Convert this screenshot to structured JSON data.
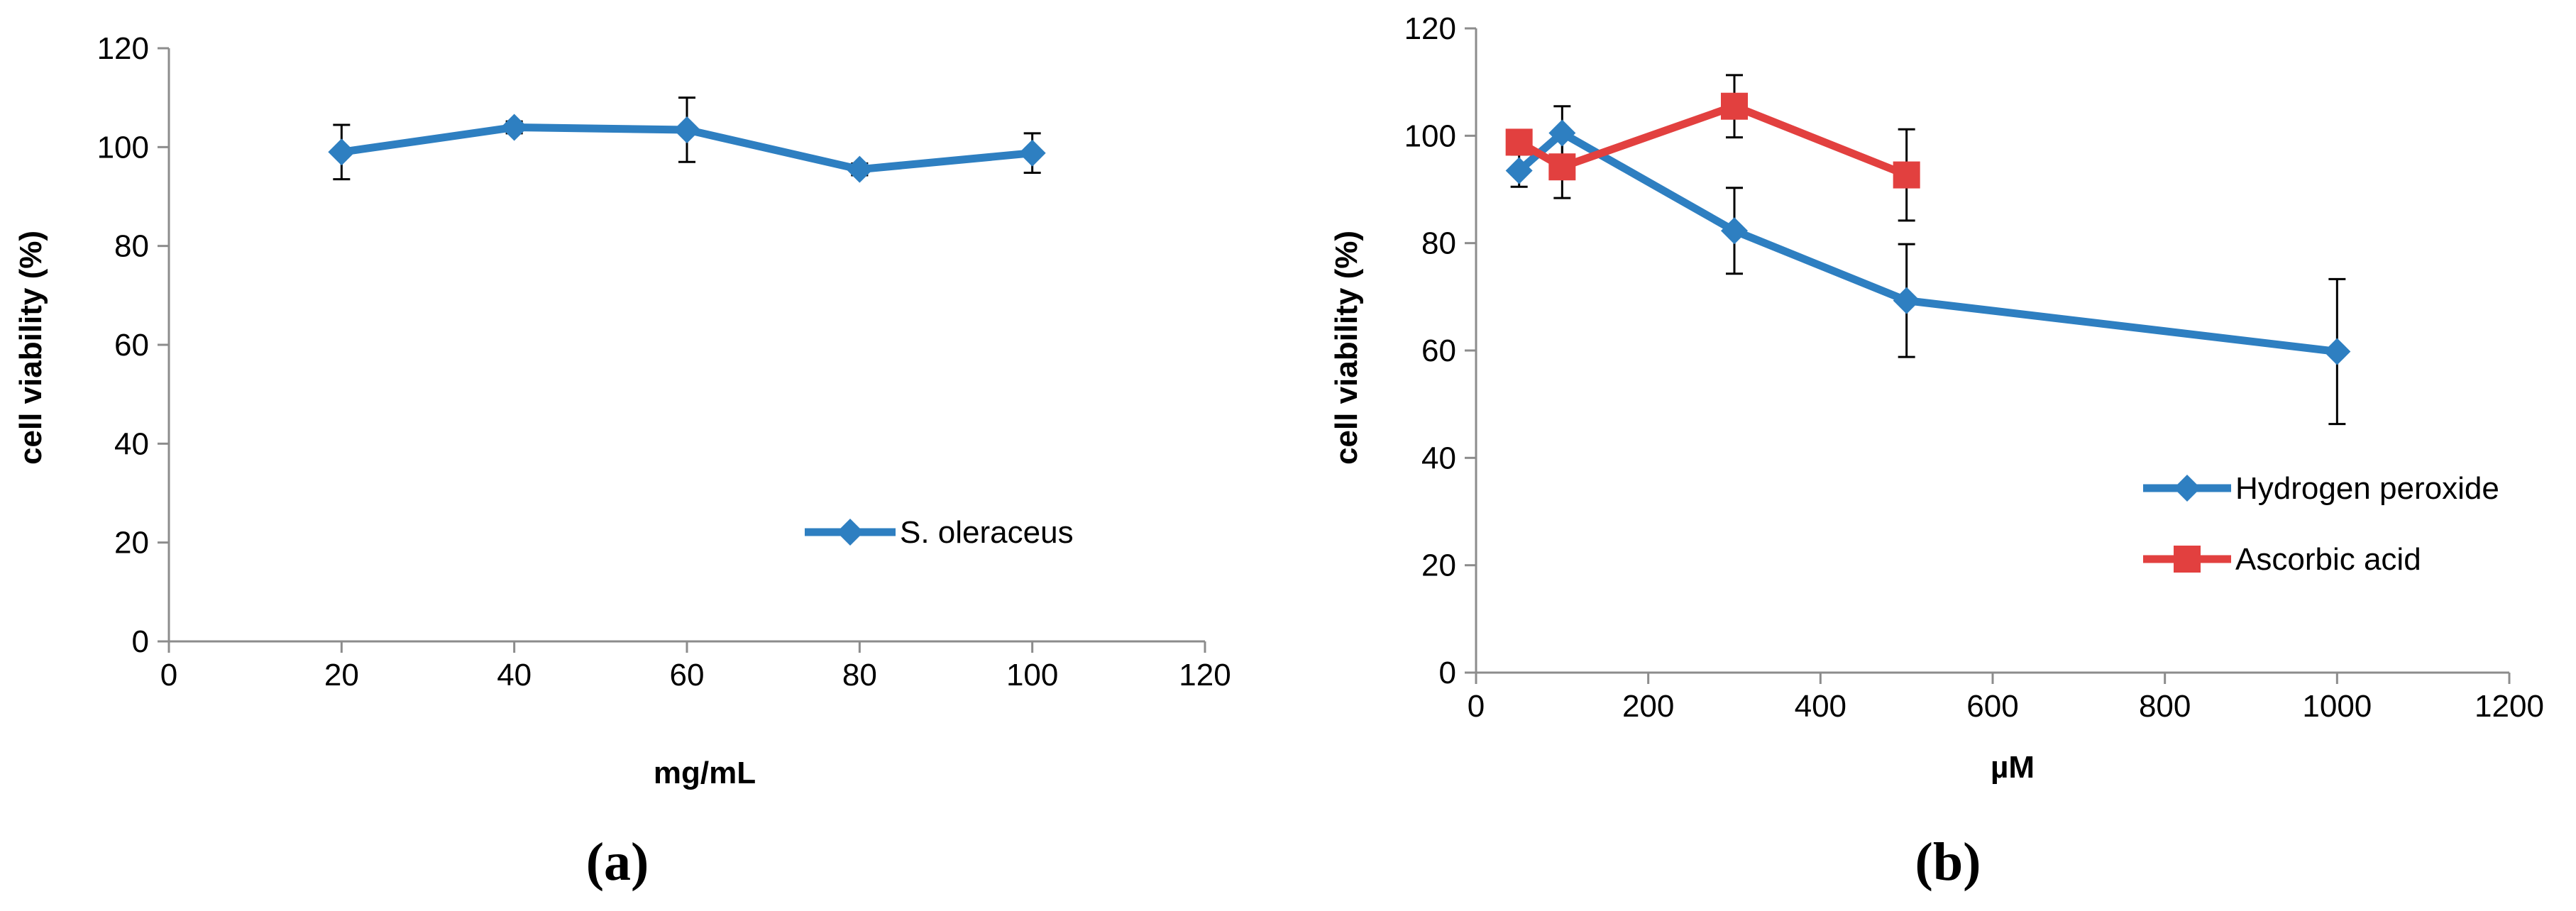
{
  "colors": {
    "blue": "#2e7fc1",
    "red": "#e2403f",
    "axis": "#8c8c8c",
    "text": "#000000"
  },
  "chart_data": [
    {
      "type": "line",
      "panel_label": "(a)",
      "xlabel": "mg/mL",
      "ylabel": "cell viability (%)",
      "xlim": [
        0,
        120
      ],
      "ylim": [
        0,
        120
      ],
      "xticks": [
        0,
        20,
        40,
        60,
        80,
        100,
        120
      ],
      "yticks": [
        0,
        20,
        40,
        60,
        80,
        100,
        120
      ],
      "legend_position": "center-right",
      "series": [
        {
          "name": "S. oleraceus",
          "color": "#2e7fc1",
          "marker": "diamond",
          "x": [
            20,
            40,
            60,
            80,
            100
          ],
          "y": [
            99,
            104,
            103.5,
            95.5,
            98.8
          ],
          "err": [
            5.5,
            1.2,
            6.5,
            1.2,
            4
          ]
        }
      ]
    },
    {
      "type": "line",
      "panel_label": "(b)",
      "xlabel": "µM",
      "ylabel": "cell viability (%)",
      "xlim": [
        0,
        1200
      ],
      "ylim": [
        0,
        120
      ],
      "xticks": [
        0,
        200,
        400,
        600,
        800,
        1000,
        1200
      ],
      "yticks": [
        0,
        20,
        40,
        60,
        80,
        100,
        120
      ],
      "legend_position": "right",
      "series": [
        {
          "name": "Hydrogen peroxide",
          "color": "#2e7fc1",
          "marker": "diamond",
          "x": [
            50,
            100,
            300,
            500,
            1000
          ],
          "y": [
            93.5,
            100.5,
            82.3,
            69.3,
            59.8
          ],
          "err": [
            3,
            5,
            8,
            10.5,
            13.5
          ]
        },
        {
          "name": "Ascorbic acid",
          "color": "#e2403f",
          "marker": "square",
          "x": [
            50,
            100,
            300,
            500
          ],
          "y": [
            98.8,
            94.2,
            105.5,
            92.7
          ],
          "err": [
            0,
            5.8,
            5.8,
            8.5
          ]
        }
      ]
    }
  ]
}
